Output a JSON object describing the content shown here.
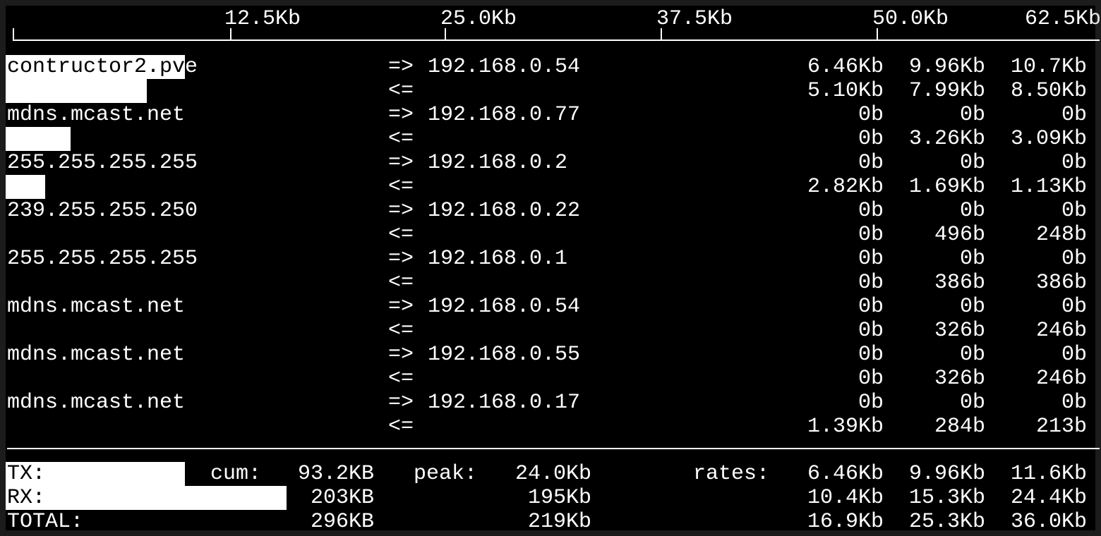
{
  "scale": {
    "labels": [
      "12.5Kb",
      "25.0Kb",
      "37.5Kb",
      "50.0Kb",
      "62.5Kb"
    ]
  },
  "flows": [
    {
      "host": "contructor2.pve",
      "dest": "192.168.0.54",
      "out": [
        "6.46Kb",
        "9.96Kb",
        "10.7Kb"
      ],
      "in": [
        "5.10Kb",
        "7.99Kb",
        "8.50Kb"
      ],
      "bar_out": 0.93,
      "bar_in": 0.73
    },
    {
      "host": "mdns.mcast.net",
      "dest": "192.168.0.77",
      "out": [
        "0b",
        "0b",
        "0b"
      ],
      "in": [
        "0b",
        "3.26Kb",
        "3.09Kb"
      ],
      "bar_out": 0,
      "bar_in": 0.33
    },
    {
      "host": "255.255.255.255",
      "dest": "192.168.0.2",
      "out": [
        "0b",
        "0b",
        "0b"
      ],
      "in": [
        "2.82Kb",
        "1.69Kb",
        "1.13Kb"
      ],
      "bar_out": 0,
      "bar_in": 0.2
    },
    {
      "host": "239.255.255.250",
      "dest": "192.168.0.22",
      "out": [
        "0b",
        "0b",
        "0b"
      ],
      "in": [
        "0b",
        "496b",
        "248b"
      ],
      "bar_out": 0,
      "bar_in": 0
    },
    {
      "host": "255.255.255.255",
      "dest": "192.168.0.1",
      "out": [
        "0b",
        "0b",
        "0b"
      ],
      "in": [
        "0b",
        "386b",
        "386b"
      ],
      "bar_out": 0,
      "bar_in": 0
    },
    {
      "host": "mdns.mcast.net",
      "dest": "192.168.0.54",
      "out": [
        "0b",
        "0b",
        "0b"
      ],
      "in": [
        "0b",
        "326b",
        "246b"
      ],
      "bar_out": 0,
      "bar_in": 0
    },
    {
      "host": "mdns.mcast.net",
      "dest": "192.168.0.55",
      "out": [
        "0b",
        "0b",
        "0b"
      ],
      "in": [
        "0b",
        "326b",
        "246b"
      ],
      "bar_out": 0,
      "bar_in": 0
    },
    {
      "host": "mdns.mcast.net",
      "dest": "192.168.0.17",
      "out": [
        "0b",
        "0b",
        "0b"
      ],
      "in": [
        "1.39Kb",
        "284b",
        "213b"
      ],
      "bar_out": 0,
      "bar_in": 0
    }
  ],
  "arrows": {
    "out": "=>",
    "in": "<="
  },
  "totals": {
    "cum_label": "cum:",
    "peak_label": "peak:",
    "rates_label": "rates:",
    "rows": [
      {
        "label": "TX:",
        "cum": "93.2KB",
        "peak": "24.0Kb",
        "rates": [
          "6.46Kb",
          "9.96Kb",
          "11.6Kb"
        ],
        "bar": 0.163
      },
      {
        "label": "RX:",
        "cum": "203KB",
        "peak": "195Kb",
        "rates": [
          "10.4Kb",
          "15.3Kb",
          "24.4Kb"
        ],
        "bar": 0.26
      },
      {
        "label": "TOTAL:",
        "cum": "296KB",
        "peak": "219Kb",
        "rates": [
          "16.9Kb",
          "25.3Kb",
          "36.0Kb"
        ],
        "bar": 0
      }
    ]
  }
}
